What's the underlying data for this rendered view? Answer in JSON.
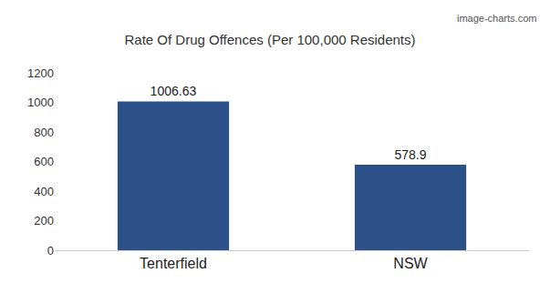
{
  "chart_data": {
    "type": "bar",
    "title": "Rate Of Drug Offences (Per 100,000 Residents)",
    "categories": [
      "Tenterfield",
      "NSW"
    ],
    "values": [
      1006.63,
      578.9
    ],
    "color": "#2c5088",
    "ylim": [
      0,
      1200
    ],
    "yticks": [
      0,
      200,
      400,
      600,
      800,
      1000,
      1200
    ],
    "grid": false,
    "data_labels": true,
    "annotations": [
      "image-charts.com"
    ]
  }
}
